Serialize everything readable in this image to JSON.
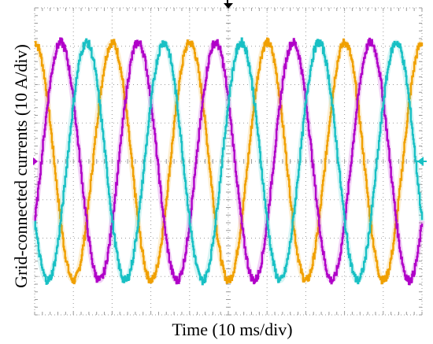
{
  "chart_data": {
    "type": "line",
    "xlabel": "Time (10 ms/div)",
    "ylabel": "Grid-connected currents (10 A/div)",
    "divisions": {
      "x": 10,
      "y": 8
    },
    "x_unit_per_div_ms": 10,
    "y_unit_per_div_A": 10,
    "xlim": [
      0,
      100
    ],
    "ylim": [
      -40,
      40
    ],
    "grid": true,
    "frequency_hz": 50,
    "amplitude_A": 31,
    "series": [
      {
        "color": "#f0a000",
        "phase_deg": 90,
        "amplitude_A": 31
      },
      {
        "color": "#b000c8",
        "phase_deg": -30,
        "amplitude_A": 31
      },
      {
        "color": "#18c0c4",
        "phase_deg": 210,
        "amplitude_A": 31
      }
    ],
    "markers": {
      "trigger": "down-arrow",
      "left_level": "magenta-arrow",
      "right_level": "cyan-arrow"
    }
  }
}
